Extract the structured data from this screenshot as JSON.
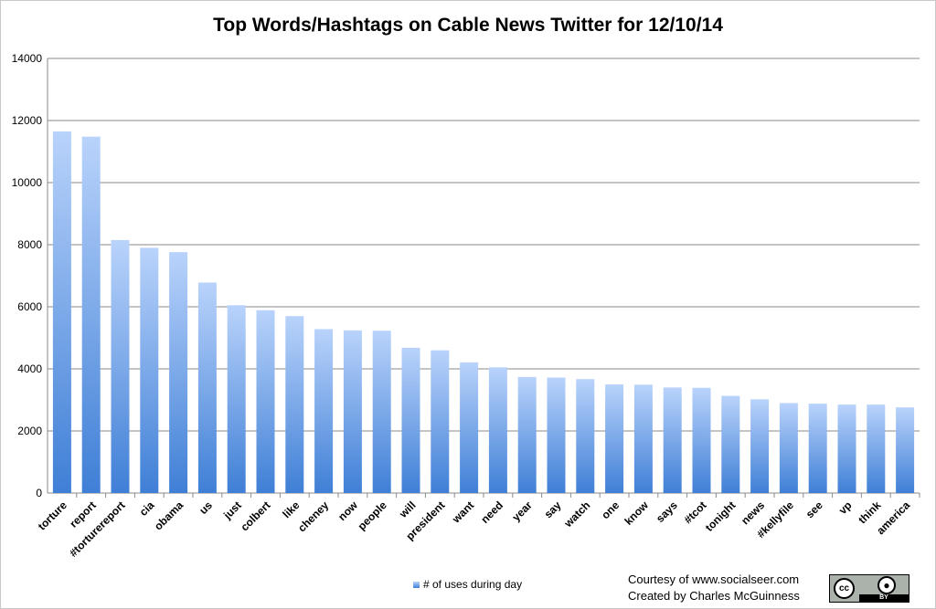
{
  "chart_data": {
    "type": "bar",
    "title": "Top Words/Hashtags on Cable News Twitter for 12/10/14",
    "xlabel": "",
    "ylabel": "",
    "ylim": [
      0,
      14000
    ],
    "yticks": [
      "0",
      "2000",
      "4000",
      "6000",
      "8000",
      "10000",
      "12000",
      "14000"
    ],
    "grid": true,
    "legend_position": "bottom",
    "bar_color_top": "#b9d3fb",
    "bar_color_bottom": "#3f7fd6",
    "categories": [
      "torture",
      "report",
      "#torturereport",
      "cia",
      "obama",
      "us",
      "just",
      "colbert",
      "like",
      "cheney",
      "now",
      "people",
      "will",
      "president",
      "want",
      "need",
      "year",
      "say",
      "watch",
      "one",
      "know",
      "says",
      "#tcot",
      "tonight",
      "news",
      "#kellyfile",
      "see",
      "vp",
      "think",
      "america"
    ],
    "series": [
      {
        "name": "# of uses during day",
        "values": [
          11650,
          11480,
          8150,
          7900,
          7760,
          6780,
          6050,
          5890,
          5700,
          5280,
          5240,
          5230,
          4680,
          4600,
          4210,
          4050,
          3740,
          3720,
          3670,
          3500,
          3490,
          3400,
          3390,
          3130,
          3020,
          2900,
          2880,
          2850,
          2850,
          2760
        ]
      }
    ]
  },
  "credits": {
    "line1": "Courtesy of www.socialseer.com",
    "line2": "Created by Charles McGuinness"
  },
  "license_badge": {
    "cc": "cc",
    "by": "BY",
    "icon": "person-icon"
  }
}
